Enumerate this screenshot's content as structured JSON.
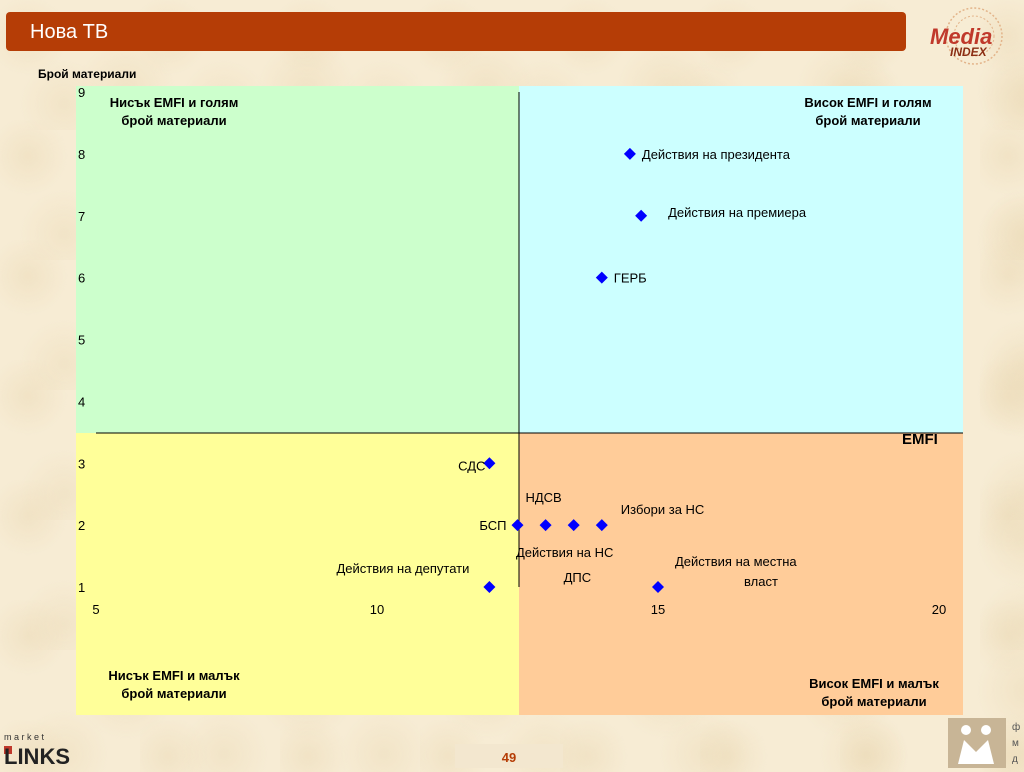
{
  "header": {
    "title": "Нова ТВ",
    "logo_text_1": "Media",
    "logo_text_2": "INDEX"
  },
  "footer": {
    "page_number": "49",
    "left_logo_top": "m a r k e t",
    "left_logo_bottom": "LINKS",
    "right_logo_letters": [
      "ф",
      "м",
      "д"
    ]
  },
  "quadrants": {
    "top_left": [
      "Нисък EMFI и голям",
      "брой материали"
    ],
    "top_right": [
      "Висок EMFI и голям",
      "брой материали"
    ],
    "bottom_left": [
      "Нисък EMFI и малък",
      "брой материали"
    ],
    "bottom_right": [
      "Висок EMFI и малък",
      "брой материали"
    ],
    "colors": {
      "top_left": "#ccffcc",
      "top_right": "#ccffff",
      "bottom_left": "#ffff99",
      "bottom_right": "#ffcc99"
    }
  },
  "chart_data": {
    "type": "scatter",
    "title": "",
    "xlabel": "EMFI",
    "ylabel": "Брой материали",
    "xlim": [
      5,
      20
    ],
    "ylim": [
      1,
      9
    ],
    "x_ticks": [
      "5",
      "10",
      "15",
      "20"
    ],
    "y_ticks": [
      "1",
      "2",
      "3",
      "4",
      "5",
      "6",
      "7",
      "8",
      "9"
    ],
    "marker_color": "#0000ff",
    "points": [
      {
        "label": "Действия на президента",
        "x": 14.5,
        "y": 8
      },
      {
        "label": "Действия на премиера",
        "x": 14.7,
        "y": 7
      },
      {
        "label": "ГЕРБ",
        "x": 14.0,
        "y": 6
      },
      {
        "label": "СДС",
        "x": 12.0,
        "y": 3
      },
      {
        "label": "БСП",
        "x": 12.5,
        "y": 2
      },
      {
        "label": "НДСВ",
        "x": 13.0,
        "y": 2
      },
      {
        "label": "Действия на НС",
        "x": 13.5,
        "y": 2
      },
      {
        "label": "Избори за НС",
        "x": 14.0,
        "y": 2
      },
      {
        "label": "Действия на депутати",
        "x": 12.0,
        "y": 1
      },
      {
        "label": "ДПС",
        "x": 12.0,
        "y": 1
      },
      {
        "label": "Действия на местна",
        "label2": "власт",
        "x": 15.0,
        "y": 1
      }
    ]
  }
}
